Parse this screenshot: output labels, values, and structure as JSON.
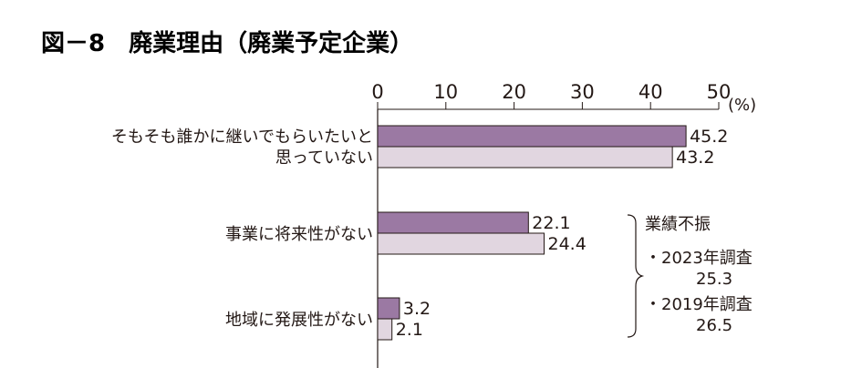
{
  "chart_data": {
    "type": "bar",
    "orientation": "horizontal",
    "title": "図－8　廃業理由（廃業予定企業）",
    "unit": "(%)",
    "xlim": [
      0,
      50
    ],
    "xticks": [
      0,
      10,
      20,
      30,
      40,
      50
    ],
    "grid": false,
    "legend": "none",
    "categories": [
      [
        "そもそも誰かに継いでもらいたいと",
        "思っていない"
      ],
      [
        "事業に将来性がない"
      ],
      [
        "地域に発展性がない"
      ]
    ],
    "series": [
      {
        "values": [
          45.2,
          22.1,
          3.2
        ],
        "labels": [
          "45.2",
          "22.1",
          "3.2"
        ],
        "color": "#9b79a3"
      },
      {
        "values": [
          43.2,
          24.4,
          2.1
        ],
        "labels": [
          "43.2",
          "24.4",
          "2.1"
        ],
        "color": "#e1d6e0"
      }
    ],
    "annotation": {
      "heading": "業績不振",
      "lines": [
        "・2023年調査",
        "25.3",
        "・2019年調査",
        "26.5"
      ]
    }
  }
}
